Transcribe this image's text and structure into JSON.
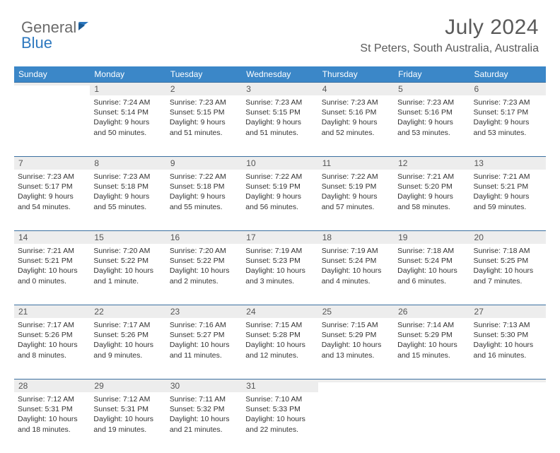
{
  "logo": {
    "gray": "General",
    "blue": "Blue"
  },
  "title": "July 2024",
  "location": "St Peters, South Australia, Australia",
  "header_bg": "#3b87c8",
  "daynum_bg": "#ededed",
  "border_color": "#3b6fa0",
  "text_color": "#333333",
  "weekdays": [
    "Sunday",
    "Monday",
    "Tuesday",
    "Wednesday",
    "Thursday",
    "Friday",
    "Saturday"
  ],
  "weeks": [
    [
      null,
      {
        "d": "1",
        "sr": "Sunrise: 7:24 AM",
        "ss": "Sunset: 5:14 PM",
        "dl1": "Daylight: 9 hours",
        "dl2": "and 50 minutes."
      },
      {
        "d": "2",
        "sr": "Sunrise: 7:23 AM",
        "ss": "Sunset: 5:15 PM",
        "dl1": "Daylight: 9 hours",
        "dl2": "and 51 minutes."
      },
      {
        "d": "3",
        "sr": "Sunrise: 7:23 AM",
        "ss": "Sunset: 5:15 PM",
        "dl1": "Daylight: 9 hours",
        "dl2": "and 51 minutes."
      },
      {
        "d": "4",
        "sr": "Sunrise: 7:23 AM",
        "ss": "Sunset: 5:16 PM",
        "dl1": "Daylight: 9 hours",
        "dl2": "and 52 minutes."
      },
      {
        "d": "5",
        "sr": "Sunrise: 7:23 AM",
        "ss": "Sunset: 5:16 PM",
        "dl1": "Daylight: 9 hours",
        "dl2": "and 53 minutes."
      },
      {
        "d": "6",
        "sr": "Sunrise: 7:23 AM",
        "ss": "Sunset: 5:17 PM",
        "dl1": "Daylight: 9 hours",
        "dl2": "and 53 minutes."
      }
    ],
    [
      {
        "d": "7",
        "sr": "Sunrise: 7:23 AM",
        "ss": "Sunset: 5:17 PM",
        "dl1": "Daylight: 9 hours",
        "dl2": "and 54 minutes."
      },
      {
        "d": "8",
        "sr": "Sunrise: 7:23 AM",
        "ss": "Sunset: 5:18 PM",
        "dl1": "Daylight: 9 hours",
        "dl2": "and 55 minutes."
      },
      {
        "d": "9",
        "sr": "Sunrise: 7:22 AM",
        "ss": "Sunset: 5:18 PM",
        "dl1": "Daylight: 9 hours",
        "dl2": "and 55 minutes."
      },
      {
        "d": "10",
        "sr": "Sunrise: 7:22 AM",
        "ss": "Sunset: 5:19 PM",
        "dl1": "Daylight: 9 hours",
        "dl2": "and 56 minutes."
      },
      {
        "d": "11",
        "sr": "Sunrise: 7:22 AM",
        "ss": "Sunset: 5:19 PM",
        "dl1": "Daylight: 9 hours",
        "dl2": "and 57 minutes."
      },
      {
        "d": "12",
        "sr": "Sunrise: 7:21 AM",
        "ss": "Sunset: 5:20 PM",
        "dl1": "Daylight: 9 hours",
        "dl2": "and 58 minutes."
      },
      {
        "d": "13",
        "sr": "Sunrise: 7:21 AM",
        "ss": "Sunset: 5:21 PM",
        "dl1": "Daylight: 9 hours",
        "dl2": "and 59 minutes."
      }
    ],
    [
      {
        "d": "14",
        "sr": "Sunrise: 7:21 AM",
        "ss": "Sunset: 5:21 PM",
        "dl1": "Daylight: 10 hours",
        "dl2": "and 0 minutes."
      },
      {
        "d": "15",
        "sr": "Sunrise: 7:20 AM",
        "ss": "Sunset: 5:22 PM",
        "dl1": "Daylight: 10 hours",
        "dl2": "and 1 minute."
      },
      {
        "d": "16",
        "sr": "Sunrise: 7:20 AM",
        "ss": "Sunset: 5:22 PM",
        "dl1": "Daylight: 10 hours",
        "dl2": "and 2 minutes."
      },
      {
        "d": "17",
        "sr": "Sunrise: 7:19 AM",
        "ss": "Sunset: 5:23 PM",
        "dl1": "Daylight: 10 hours",
        "dl2": "and 3 minutes."
      },
      {
        "d": "18",
        "sr": "Sunrise: 7:19 AM",
        "ss": "Sunset: 5:24 PM",
        "dl1": "Daylight: 10 hours",
        "dl2": "and 4 minutes."
      },
      {
        "d": "19",
        "sr": "Sunrise: 7:18 AM",
        "ss": "Sunset: 5:24 PM",
        "dl1": "Daylight: 10 hours",
        "dl2": "and 6 minutes."
      },
      {
        "d": "20",
        "sr": "Sunrise: 7:18 AM",
        "ss": "Sunset: 5:25 PM",
        "dl1": "Daylight: 10 hours",
        "dl2": "and 7 minutes."
      }
    ],
    [
      {
        "d": "21",
        "sr": "Sunrise: 7:17 AM",
        "ss": "Sunset: 5:26 PM",
        "dl1": "Daylight: 10 hours",
        "dl2": "and 8 minutes."
      },
      {
        "d": "22",
        "sr": "Sunrise: 7:17 AM",
        "ss": "Sunset: 5:26 PM",
        "dl1": "Daylight: 10 hours",
        "dl2": "and 9 minutes."
      },
      {
        "d": "23",
        "sr": "Sunrise: 7:16 AM",
        "ss": "Sunset: 5:27 PM",
        "dl1": "Daylight: 10 hours",
        "dl2": "and 11 minutes."
      },
      {
        "d": "24",
        "sr": "Sunrise: 7:15 AM",
        "ss": "Sunset: 5:28 PM",
        "dl1": "Daylight: 10 hours",
        "dl2": "and 12 minutes."
      },
      {
        "d": "25",
        "sr": "Sunrise: 7:15 AM",
        "ss": "Sunset: 5:29 PM",
        "dl1": "Daylight: 10 hours",
        "dl2": "and 13 minutes."
      },
      {
        "d": "26",
        "sr": "Sunrise: 7:14 AM",
        "ss": "Sunset: 5:29 PM",
        "dl1": "Daylight: 10 hours",
        "dl2": "and 15 minutes."
      },
      {
        "d": "27",
        "sr": "Sunrise: 7:13 AM",
        "ss": "Sunset: 5:30 PM",
        "dl1": "Daylight: 10 hours",
        "dl2": "and 16 minutes."
      }
    ],
    [
      {
        "d": "28",
        "sr": "Sunrise: 7:12 AM",
        "ss": "Sunset: 5:31 PM",
        "dl1": "Daylight: 10 hours",
        "dl2": "and 18 minutes."
      },
      {
        "d": "29",
        "sr": "Sunrise: 7:12 AM",
        "ss": "Sunset: 5:31 PM",
        "dl1": "Daylight: 10 hours",
        "dl2": "and 19 minutes."
      },
      {
        "d": "30",
        "sr": "Sunrise: 7:11 AM",
        "ss": "Sunset: 5:32 PM",
        "dl1": "Daylight: 10 hours",
        "dl2": "and 21 minutes."
      },
      {
        "d": "31",
        "sr": "Sunrise: 7:10 AM",
        "ss": "Sunset: 5:33 PM",
        "dl1": "Daylight: 10 hours",
        "dl2": "and 22 minutes."
      },
      null,
      null,
      null
    ]
  ]
}
